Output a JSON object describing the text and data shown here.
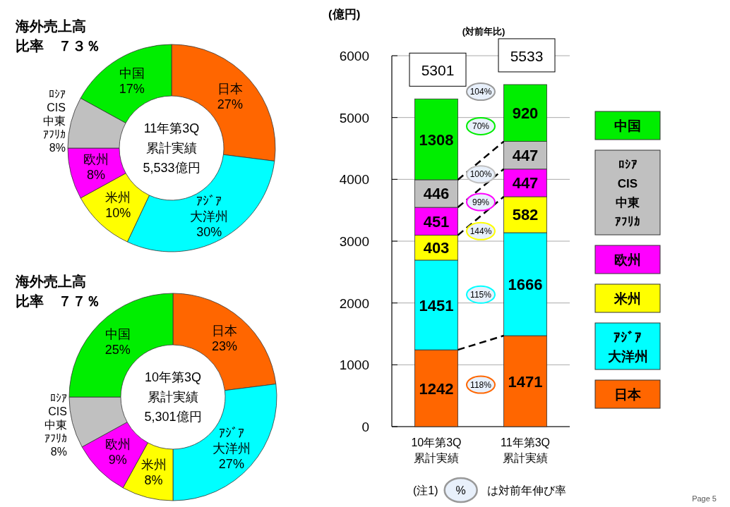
{
  "chart_data": [
    {
      "type": "donut",
      "title": "海外売上高比率　７３％",
      "annotations": [
        "11年第3Q累計実績5,533億円"
      ],
      "categories": [
        "日本",
        "ｱｼﾞｱ大洋州",
        "米州",
        "欧州",
        "ﾛｼｱCIS中東ｱﾌﾘｶ",
        "中国"
      ],
      "values": [
        27,
        30,
        10,
        8,
        8,
        17
      ],
      "value_labels": [
        "27%",
        "30%",
        "10%",
        "8%",
        "8%",
        "17%"
      ],
      "colors": [
        "#ff6600",
        "#00ffff",
        "#ffff00",
        "#ff00ff",
        "#c0c0c0",
        "#00ee00"
      ]
    },
    {
      "type": "donut",
      "title": "海外売上高比率　７７％",
      "annotations": [
        "10年第3Q累計実績5,301億円"
      ],
      "categories": [
        "日本",
        "ｱｼﾞｱ大洋州",
        "米州",
        "欧州",
        "ﾛｼｱCIS中東ｱﾌﾘｶ",
        "中国"
      ],
      "values": [
        23,
        27,
        8,
        9,
        8,
        25
      ],
      "value_labels": [
        "23%",
        "27%",
        "8%",
        "9%",
        "8%",
        "25%"
      ],
      "colors": [
        "#ff6600",
        "#00ffff",
        "#ffff00",
        "#ff00ff",
        "#c0c0c0",
        "#00ee00"
      ]
    },
    {
      "type": "bar",
      "stacked": true,
      "subtitle": "(対前年比)",
      "ylabel": "(億円)",
      "categories": [
        "10年第3Q累計実績",
        "11年第3Q累計実績"
      ],
      "ylim": [
        0,
        6000
      ],
      "yticks": [
        0,
        1000,
        2000,
        3000,
        4000,
        5000,
        6000
      ],
      "grid": "y",
      "legend": "right",
      "data_labels": true,
      "totals": [
        "5301",
        "5533"
      ],
      "series": [
        {
          "name": "日本",
          "color": "#ff6600",
          "values": [
            1242,
            1471
          ]
        },
        {
          "name": "ｱｼﾞｱ大洋州",
          "color": "#00ffff",
          "values": [
            1451,
            1666
          ]
        },
        {
          "name": "米州",
          "color": "#ffff00",
          "values": [
            403,
            582
          ]
        },
        {
          "name": "欧州",
          "color": "#ff00ff",
          "values": [
            451,
            447
          ]
        },
        {
          "name": "ﾛｼｱCIS中東ｱﾌﾘｶ",
          "color": "#c0c0c0",
          "values": [
            446,
            447
          ]
        },
        {
          "name": "中国",
          "color": "#00ee00",
          "values": [
            1308,
            920
          ]
        }
      ],
      "annotations": [
        "118%",
        "115%",
        "144%",
        "99%",
        "100%",
        "70%",
        "104%",
        "(注1) % は対前年伸び率",
        "Page 5"
      ]
    }
  ]
}
